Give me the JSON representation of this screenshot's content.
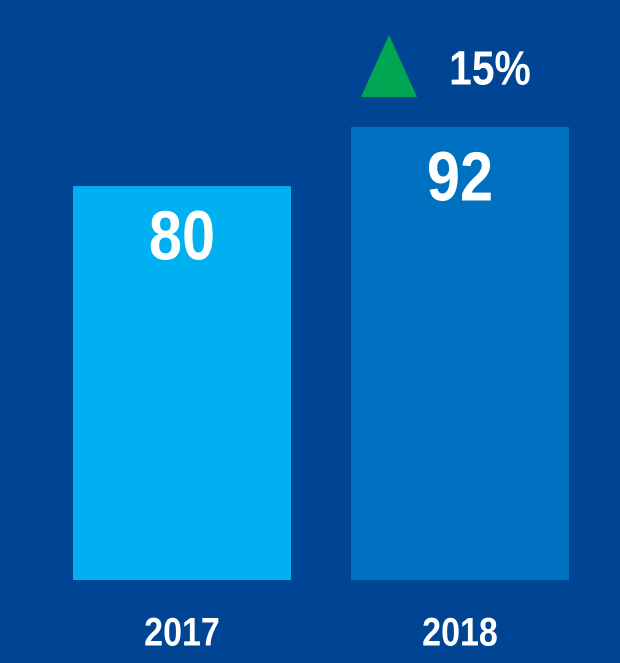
{
  "chart_data": {
    "type": "bar",
    "categories": [
      "2017",
      "2018"
    ],
    "values": [
      80,
      92
    ],
    "colors": [
      "#00b0f0",
      "#0070c0"
    ],
    "background": "#004494",
    "annotation": "15%",
    "annotation_color": "#00a651"
  }
}
